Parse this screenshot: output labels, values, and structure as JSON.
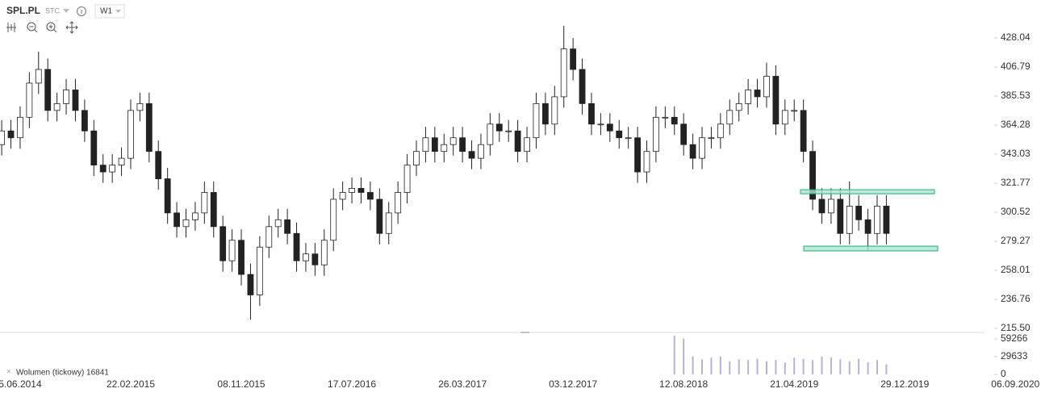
{
  "symbol": "SPL.PL",
  "exchange": "STC",
  "timeframe": "W1",
  "chart_data": {
    "type": "candlestick",
    "categories": [
      null,
      null,
      "5.06.2014",
      null,
      null,
      null,
      null,
      null,
      null,
      null,
      null,
      null,
      null,
      null,
      "22.02.2015",
      null,
      null,
      null,
      null,
      null,
      null,
      null,
      null,
      null,
      null,
      null,
      "08.11.2015",
      null,
      null,
      null,
      null,
      null,
      null,
      null,
      null,
      null,
      null,
      null,
      "17.07.2016",
      null,
      null,
      null,
      null,
      null,
      null,
      null,
      null,
      null,
      null,
      null,
      "26.03.2017",
      null,
      null,
      null,
      null,
      null,
      null,
      null,
      null,
      null,
      null,
      null,
      "03.12.2017",
      null,
      null,
      null,
      null,
      null,
      null,
      null,
      null,
      null,
      null,
      null,
      "12.08.2018",
      null,
      null,
      null,
      null,
      null,
      null,
      null,
      null,
      null,
      null,
      null,
      "21.04.2019",
      null,
      null,
      null,
      null,
      null,
      null,
      null,
      null,
      null,
      null,
      null,
      "29.12.2019",
      null,
      null,
      null,
      null,
      null,
      null,
      null,
      null,
      null,
      null,
      null,
      "06.09.2020"
    ],
    "open": [
      350,
      360,
      355,
      370,
      395,
      405,
      375,
      380,
      390,
      375,
      360,
      335,
      330,
      335,
      340,
      375,
      380,
      345,
      325,
      300,
      290,
      295,
      300,
      315,
      290,
      265,
      280,
      255,
      240,
      275,
      290,
      295,
      285,
      265,
      270,
      262,
      280,
      310,
      315,
      318,
      315,
      310,
      285,
      300,
      315,
      335,
      345,
      355,
      345,
      350,
      355,
      345,
      340,
      350,
      365,
      360,
      360,
      345,
      355,
      380,
      365,
      385,
      420,
      405,
      380,
      365,
      365,
      360,
      355,
      355,
      330,
      345,
      370,
      370,
      365,
      350,
      340,
      355,
      355,
      365,
      375,
      380,
      390,
      385,
      400,
      365,
      375,
      375,
      345,
      310,
      300,
      310,
      285,
      305,
      295,
      285,
      305,
      null,
      null,
      null,
      null,
      null,
      null,
      null,
      null,
      null,
      null,
      null,
      null,
      null,
      null
    ],
    "high": [
      368,
      368,
      378,
      403,
      418,
      413,
      388,
      398,
      398,
      383,
      368,
      343,
      343,
      348,
      383,
      388,
      388,
      353,
      333,
      308,
      303,
      308,
      323,
      323,
      298,
      288,
      288,
      263,
      283,
      298,
      303,
      303,
      293,
      278,
      278,
      288,
      318,
      323,
      326,
      326,
      323,
      318,
      308,
      323,
      343,
      353,
      363,
      363,
      358,
      363,
      363,
      353,
      358,
      373,
      373,
      368,
      368,
      363,
      388,
      388,
      393,
      437,
      428,
      413,
      388,
      373,
      373,
      368,
      363,
      363,
      353,
      378,
      378,
      378,
      373,
      358,
      363,
      363,
      373,
      383,
      388,
      398,
      398,
      410,
      408,
      383,
      383,
      383,
      353,
      318,
      318,
      318,
      323,
      313,
      303,
      313,
      313,
      null,
      null,
      null,
      null,
      null,
      null,
      null,
      null,
      null,
      null,
      null,
      null,
      null,
      null
    ],
    "low": [
      342,
      347,
      347,
      362,
      387,
      367,
      367,
      372,
      367,
      352,
      327,
      322,
      322,
      327,
      332,
      367,
      337,
      317,
      292,
      282,
      282,
      287,
      292,
      282,
      257,
      257,
      247,
      222,
      232,
      267,
      282,
      277,
      257,
      257,
      254,
      254,
      272,
      302,
      307,
      307,
      302,
      277,
      277,
      292,
      307,
      327,
      337,
      337,
      337,
      342,
      337,
      332,
      332,
      342,
      352,
      352,
      337,
      337,
      347,
      357,
      357,
      377,
      397,
      372,
      357,
      357,
      352,
      347,
      347,
      322,
      322,
      337,
      362,
      357,
      342,
      332,
      332,
      347,
      347,
      357,
      367,
      372,
      377,
      377,
      357,
      357,
      367,
      337,
      302,
      292,
      292,
      277,
      277,
      287,
      272,
      277,
      277,
      null,
      null,
      null,
      null,
      null,
      null,
      null,
      null,
      null,
      null,
      null,
      null,
      null,
      null
    ],
    "close": [
      360,
      355,
      370,
      395,
      405,
      375,
      380,
      390,
      375,
      360,
      335,
      330,
      335,
      340,
      375,
      380,
      345,
      325,
      300,
      290,
      295,
      300,
      315,
      290,
      265,
      280,
      255,
      240,
      275,
      290,
      295,
      285,
      265,
      270,
      262,
      280,
      310,
      315,
      318,
      315,
      310,
      285,
      300,
      315,
      335,
      345,
      355,
      345,
      350,
      355,
      345,
      340,
      350,
      365,
      360,
      360,
      345,
      355,
      380,
      365,
      385,
      420,
      405,
      380,
      365,
      365,
      360,
      355,
      355,
      330,
      345,
      370,
      370,
      365,
      350,
      340,
      355,
      355,
      365,
      375,
      380,
      390,
      385,
      400,
      365,
      375,
      375,
      345,
      310,
      300,
      310,
      285,
      305,
      295,
      285,
      305,
      285,
      null,
      null,
      null,
      null,
      null,
      null,
      null,
      null,
      null,
      null,
      null,
      null,
      null,
      null
    ],
    "volume": [
      null,
      null,
      null,
      null,
      null,
      null,
      null,
      null,
      null,
      null,
      null,
      null,
      null,
      null,
      null,
      null,
      null,
      null,
      null,
      null,
      null,
      null,
      null,
      null,
      null,
      null,
      null,
      null,
      null,
      null,
      null,
      null,
      null,
      null,
      null,
      null,
      null,
      null,
      null,
      null,
      null,
      null,
      null,
      null,
      null,
      null,
      null,
      null,
      null,
      null,
      null,
      null,
      null,
      null,
      null,
      null,
      null,
      null,
      null,
      null,
      null,
      null,
      null,
      null,
      null,
      null,
      null,
      null,
      null,
      null,
      null,
      null,
      null,
      65000,
      60000,
      30000,
      25000,
      28000,
      30000,
      22000,
      25000,
      24000,
      26000,
      22000,
      24000,
      20000,
      28000,
      26000,
      24000,
      30000,
      28000,
      25000,
      22000,
      26000,
      20000,
      24000,
      16841,
      null,
      null,
      null,
      null,
      null,
      null,
      null,
      null,
      null,
      null,
      null,
      null,
      null,
      null
    ],
    "up_color": "#ffffff",
    "down_color": "#222222",
    "volume_color": "#b9b0d8",
    "ylim": [
      215.5,
      455.8
    ],
    "yticks": [
      428.04,
      406.79,
      385.53,
      364.28,
      343.03,
      321.77,
      300.52,
      279.27,
      258.01,
      236.76,
      {
        "value": 215.5,
        "label": "215.50"
      }
    ],
    "volume_lim": [
      0,
      68700
    ],
    "volume_ticks": [
      59266,
      29633,
      0
    ],
    "volume_label": "Wolumen (tickowy) 16841",
    "zones": [
      {
        "top": 317,
        "bottom": 314,
        "color": "#a8e6cf"
      },
      {
        "top": 275.7,
        "bottom": 272.2,
        "color": "#a8e6cf"
      }
    ]
  }
}
